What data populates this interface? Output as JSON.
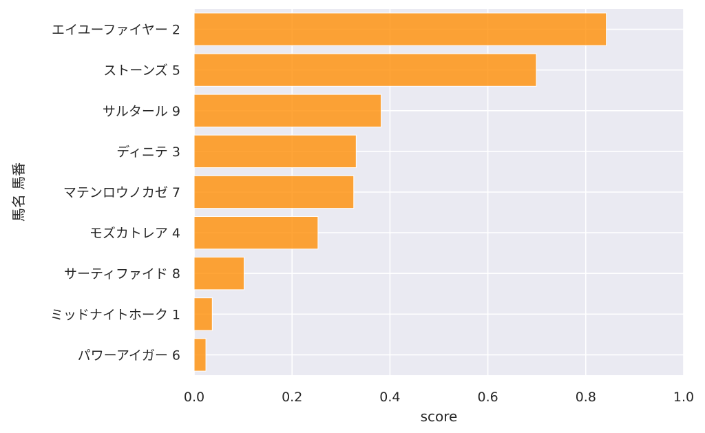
{
  "chart_data": {
    "type": "bar",
    "orientation": "horizontal",
    "categories": [
      "エイユーファイヤー 2",
      "ストーンズ 5",
      "サルタール 9",
      "ディニテ 3",
      "マテンロウノカゼ 7",
      "モズカトレア 4",
      "サーティファイド 8",
      "ミッドナイトホーク 1",
      "パワーアイガー 6"
    ],
    "values": [
      0.842,
      0.699,
      0.382,
      0.331,
      0.326,
      0.253,
      0.102,
      0.037,
      0.024
    ],
    "xlabel": "score",
    "ylabel": "馬名 馬番",
    "xlim": [
      0.0,
      1.0
    ],
    "xticks": [
      "0.0",
      "0.2",
      "0.4",
      "0.6",
      "0.8",
      "1.0"
    ],
    "grid": true,
    "bar_color": "#ff8c00",
    "background_color": "#eaeaf2"
  }
}
